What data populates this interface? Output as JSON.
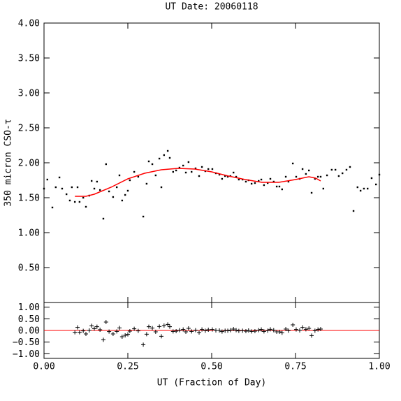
{
  "chart_data": [
    {
      "type": "scatter",
      "title": "UT Date: 20060118",
      "ylabel": "350 micron CSO-τ",
      "xlim": [
        0,
        1
      ],
      "xticks": [
        0,
        0.25,
        0.5,
        0.75,
        1
      ],
      "ylim": [
        0,
        4
      ],
      "yticks": [
        {
          "value": 0.5,
          "label": "0.50"
        },
        {
          "value": 1,
          "label": "1.00"
        },
        {
          "value": 1.5,
          "label": "1.50"
        },
        {
          "value": 2,
          "label": "2.00"
        },
        {
          "value": 2.5,
          "label": "2.50"
        },
        {
          "value": 3,
          "label": "3.00"
        },
        {
          "value": 3.5,
          "label": "3.50"
        },
        {
          "value": 4,
          "label": "4.00"
        }
      ],
      "points": {
        "color": "#000000",
        "x": [
          0,
          0.01,
          0.025,
          0.035,
          0.046,
          0.054,
          0.067,
          0.077,
          0.083,
          0.092,
          0.1,
          0.106,
          0.117,
          0.125,
          0.135,
          0.142,
          0.15,
          0.158,
          0.167,
          0.177,
          0.185,
          0.194,
          0.206,
          0.217,
          0.225,
          0.233,
          0.242,
          0.25,
          0.256,
          0.269,
          0.281,
          0.296,
          0.306,
          0.3125,
          0.323,
          0.333,
          0.344,
          0.35,
          0.358,
          0.369,
          0.375,
          0.385,
          0.394,
          0.404,
          0.415,
          0.423,
          0.431,
          0.44,
          0.452,
          0.4625,
          0.471,
          0.481,
          0.49,
          0.502,
          0.5125,
          0.523,
          0.531,
          0.54,
          0.548,
          0.556,
          0.565,
          0.573,
          0.581,
          0.592,
          0.602,
          0.61,
          0.619,
          0.629,
          0.64,
          0.648,
          0.656,
          0.667,
          0.675,
          0.685,
          0.694,
          0.702,
          0.71,
          0.721,
          0.729,
          0.742,
          0.752,
          0.7625,
          0.771,
          0.781,
          0.79,
          0.798,
          0.808,
          0.817,
          0.825,
          0.833,
          0.844,
          0.858,
          0.869,
          0.879,
          0.89,
          0.902,
          0.9125,
          0.923,
          0.935,
          0.944,
          0.954,
          0.965,
          0.977,
          0.99,
          1
        ],
        "y": [
          1.63,
          1.76,
          1.36,
          1.65,
          1.79,
          1.63,
          1.55,
          1.46,
          1.65,
          1.44,
          1.65,
          1.44,
          1.5,
          1.37,
          1.53,
          1.74,
          1.63,
          1.73,
          1.61,
          1.2,
          1.98,
          1.59,
          1.51,
          1.65,
          1.82,
          1.46,
          1.54,
          1.6,
          1.75,
          1.87,
          1.8,
          1.23,
          1.7,
          2.02,
          1.98,
          1.82,
          2.06,
          1.65,
          2.11,
          2.17,
          2.07,
          1.87,
          1.89,
          1.93,
          1.96,
          1.86,
          2.01,
          1.87,
          1.92,
          1.81,
          1.94,
          1.88,
          1.91,
          1.91,
          1.85,
          1.83,
          1.77,
          1.81,
          1.8,
          1.81,
          1.86,
          1.8,
          1.76,
          1.76,
          1.73,
          1.75,
          1.7,
          1.71,
          1.74,
          1.76,
          1.68,
          1.71,
          1.77,
          1.73,
          1.66,
          1.66,
          1.62,
          1.8,
          1.73,
          1.99,
          1.8,
          1.77,
          1.91,
          1.84,
          1.89,
          1.57,
          1.77,
          1.8,
          1.8,
          1.63,
          1.82,
          1.9,
          1.9,
          1.81,
          1.85,
          1.9,
          1.94,
          1.31,
          1.65,
          1.6,
          1.63,
          1.63,
          1.78,
          1.69,
          1.83
        ]
      },
      "fit": {
        "color": "#ff0000",
        "x": [
          0.092,
          0.125,
          0.15,
          0.2,
          0.25,
          0.3,
          0.35,
          0.4,
          0.45,
          0.5,
          0.55,
          0.6,
          0.65,
          0.7,
          0.75,
          0.79,
          0.81,
          0.825
        ],
        "y": [
          1.52,
          1.52,
          1.55,
          1.65,
          1.77,
          1.85,
          1.9,
          1.92,
          1.91,
          1.87,
          1.81,
          1.76,
          1.72,
          1.72,
          1.76,
          1.8,
          1.78,
          1.74
        ]
      }
    },
    {
      "type": "residual",
      "xlabel": "UT (Fraction of Day)",
      "xlim": [
        0,
        1
      ],
      "xticks": [
        {
          "value": 0,
          "label": "0.00"
        },
        {
          "value": 0.25,
          "label": "0.25"
        },
        {
          "value": 0.5,
          "label": "0.50"
        },
        {
          "value": 0.75,
          "label": "0.75"
        },
        {
          "value": 1,
          "label": "1.00"
        }
      ],
      "ylim": [
        -1.2,
        1.2
      ],
      "yticks": [
        {
          "value": -1,
          "label": "−1.00"
        },
        {
          "value": -0.5,
          "label": "−0.50"
        },
        {
          "value": 0,
          "label": "0.00"
        },
        {
          "value": 0.5,
          "label": "0.50"
        },
        {
          "value": 1,
          "label": "1.00"
        }
      ],
      "reference_line": {
        "value": 0,
        "color": "#ff0000"
      },
      "points": {
        "color": "#000000",
        "x": [
          0.092,
          0.1,
          0.106,
          0.117,
          0.125,
          0.135,
          0.142,
          0.15,
          0.158,
          0.167,
          0.177,
          0.185,
          0.194,
          0.206,
          0.217,
          0.225,
          0.233,
          0.242,
          0.25,
          0.256,
          0.269,
          0.281,
          0.296,
          0.306,
          0.3125,
          0.323,
          0.333,
          0.344,
          0.35,
          0.358,
          0.369,
          0.375,
          0.385,
          0.394,
          0.404,
          0.415,
          0.423,
          0.431,
          0.44,
          0.452,
          0.4625,
          0.471,
          0.481,
          0.49,
          0.502,
          0.5125,
          0.523,
          0.531,
          0.54,
          0.548,
          0.556,
          0.565,
          0.573,
          0.581,
          0.592,
          0.602,
          0.61,
          0.619,
          0.629,
          0.64,
          0.648,
          0.656,
          0.667,
          0.675,
          0.685,
          0.694,
          0.702,
          0.71,
          0.721,
          0.729,
          0.742,
          0.752,
          0.7625,
          0.771,
          0.781,
          0.79,
          0.798,
          0.808,
          0.817,
          0.825
        ],
        "y": [
          -0.08,
          0.13,
          -0.08,
          -0.02,
          -0.15,
          0,
          0.2,
          0.08,
          0.16,
          0.03,
          -0.4,
          0.36,
          -0.05,
          -0.15,
          -0.04,
          0.11,
          -0.27,
          -0.21,
          -0.17,
          -0.03,
          0.07,
          -0.02,
          -0.61,
          -0.16,
          0.16,
          0.1,
          -0.06,
          0.17,
          -0.25,
          0.21,
          0.26,
          0.16,
          -0.04,
          -0.03,
          0.01,
          0.04,
          -0.06,
          0.09,
          -0.04,
          0.01,
          -0.09,
          0.04,
          -0.01,
          0.03,
          0.04,
          0,
          0,
          -0.05,
          -0.01,
          -0.01,
          0.01,
          0.06,
          0.01,
          -0.02,
          -0.01,
          -0.03,
          0,
          -0.04,
          -0.03,
          0.01,
          0.04,
          -0.04,
          -0.01,
          0.05,
          0.01,
          -0.06,
          -0.06,
          -0.1,
          0.06,
          -0.01,
          0.24,
          0.04,
          0,
          0.13,
          0.05,
          0.09,
          -0.22,
          -0.01,
          0.04,
          0.06
        ]
      }
    }
  ]
}
